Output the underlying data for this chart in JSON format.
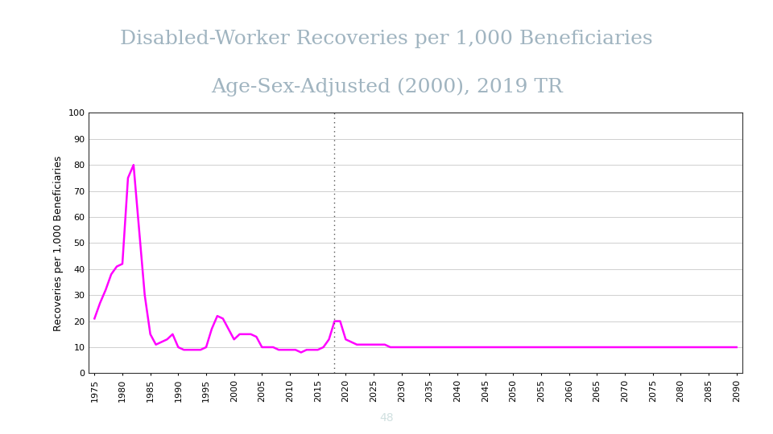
{
  "title_line1": "Disabled-Worker Recoveries per 1,000 Beneficiaries",
  "title_line2": "Age-Sex-Adjusted (2000), 2019 TR",
  "title_color": "#a0b4c0",
  "title_fontsize": 18,
  "ylabel": "Recoveries per 1,000 Beneficiaries",
  "ylabel_fontsize": 9,
  "tick_fontsize": 8,
  "background_color": "#ffffff",
  "chart_bg_color": "#ffffff",
  "footer_text": "48",
  "footer_bg": "#7fa0a8",
  "line_color": "#ff00ff",
  "line_width": 1.8,
  "vline_x": 2018,
  "vline_color": "#555555",
  "ylim": [
    0,
    100
  ],
  "yticks": [
    0,
    10,
    20,
    30,
    40,
    50,
    60,
    70,
    80,
    90,
    100
  ],
  "xlim": [
    1974,
    2091
  ],
  "xtick_start": 1975,
  "xtick_end": 2090,
  "xtick_step": 5,
  "data": {
    "years": [
      1975,
      1976,
      1977,
      1978,
      1979,
      1980,
      1981,
      1982,
      1983,
      1984,
      1985,
      1986,
      1987,
      1988,
      1989,
      1990,
      1991,
      1992,
      1993,
      1994,
      1995,
      1996,
      1997,
      1998,
      1999,
      2000,
      2001,
      2002,
      2003,
      2004,
      2005,
      2006,
      2007,
      2008,
      2009,
      2010,
      2011,
      2012,
      2013,
      2014,
      2015,
      2016,
      2017,
      2018,
      2019,
      2020,
      2021,
      2022,
      2023,
      2024,
      2025,
      2026,
      2027,
      2028,
      2029,
      2030,
      2031,
      2032,
      2033,
      2034,
      2035,
      2036,
      2037,
      2038,
      2039,
      2040,
      2041,
      2042,
      2043,
      2044,
      2045,
      2046,
      2047,
      2048,
      2049,
      2050,
      2051,
      2052,
      2053,
      2054,
      2055,
      2056,
      2057,
      2058,
      2059,
      2060,
      2061,
      2062,
      2063,
      2064,
      2065,
      2066,
      2067,
      2068,
      2069,
      2070,
      2071,
      2072,
      2073,
      2074,
      2075,
      2076,
      2077,
      2078,
      2079,
      2080,
      2081,
      2082,
      2083,
      2084,
      2085,
      2086,
      2087,
      2088,
      2089,
      2090
    ],
    "values": [
      21,
      27,
      32,
      38,
      41,
      42,
      75,
      80,
      55,
      30,
      15,
      11,
      12,
      13,
      15,
      10,
      9,
      9,
      9,
      9,
      10,
      17,
      22,
      21,
      17,
      13,
      15,
      15,
      15,
      14,
      10,
      10,
      10,
      9,
      9,
      9,
      9,
      8,
      9,
      9,
      9,
      10,
      13,
      20,
      20,
      13,
      12,
      11,
      11,
      11,
      11,
      11,
      11,
      10,
      10,
      10,
      10,
      10,
      10,
      10,
      10,
      10,
      10,
      10,
      10,
      10,
      10,
      10,
      10,
      10,
      10,
      10,
      10,
      10,
      10,
      10,
      10,
      10,
      10,
      10,
      10,
      10,
      10,
      10,
      10,
      10,
      10,
      10,
      10,
      10,
      10,
      10,
      10,
      10,
      10,
      10,
      10,
      10,
      10,
      10,
      10,
      10,
      10,
      10,
      10,
      10,
      10,
      10,
      10,
      10,
      10,
      10,
      10,
      10,
      10,
      10
    ]
  }
}
